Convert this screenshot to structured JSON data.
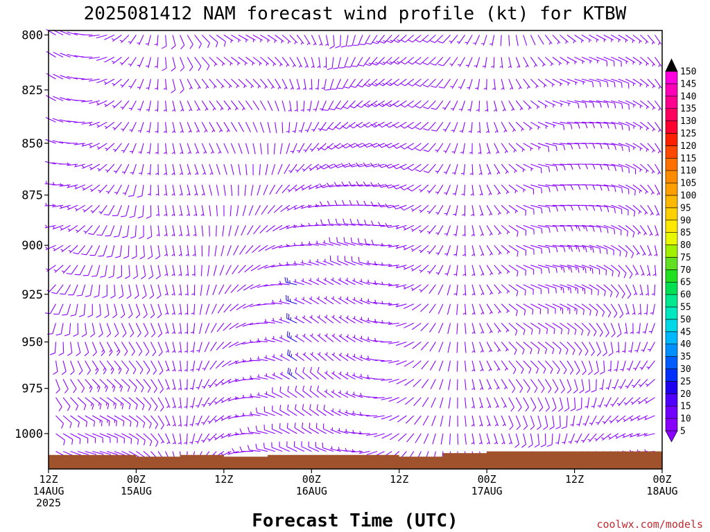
{
  "chart_data": {
    "type": "wind-barb time-height profile",
    "title": "2025081412 NAM forecast wind profile (kt) for KTBW",
    "xlabel": "Forecast Time (UTC)",
    "ylabel": "",
    "y_axis": {
      "unit": "hPa",
      "scale": "log-pressure, inverted (1000 at bottom)",
      "ylim": [
        1020,
        798
      ],
      "ticks": [
        800,
        825,
        850,
        875,
        900,
        925,
        950,
        975,
        1000
      ]
    },
    "x_axis": {
      "xlim": [
        "2025-08-14 12Z",
        "2025-08-18 00Z"
      ],
      "ticks": [
        {
          "time": "2025-08-14 12Z",
          "label1": "12Z",
          "label2": "14AUG",
          "label3": "2025"
        },
        {
          "time": "2025-08-15 00Z",
          "label1": "00Z",
          "label2": "15AUG",
          "label3": ""
        },
        {
          "time": "2025-08-15 12Z",
          "label1": "12Z",
          "label2": "",
          "label3": ""
        },
        {
          "time": "2025-08-16 00Z",
          "label1": "00Z",
          "label2": "16AUG",
          "label3": ""
        },
        {
          "time": "2025-08-16 12Z",
          "label1": "12Z",
          "label2": "",
          "label3": ""
        },
        {
          "time": "2025-08-17 00Z",
          "label1": "00Z",
          "label2": "17AUG",
          "label3": ""
        },
        {
          "time": "2025-08-17 12Z",
          "label1": "12Z",
          "label2": "",
          "label3": ""
        },
        {
          "time": "2025-08-18 00Z",
          "label1": "00Z",
          "label2": "18AUG",
          "label3": ""
        }
      ]
    },
    "colorbar": {
      "unit": "kt",
      "levels": [
        5,
        10,
        15,
        20,
        25,
        30,
        35,
        40,
        45,
        50,
        55,
        60,
        65,
        70,
        75,
        80,
        85,
        90,
        95,
        100,
        105,
        110,
        115,
        120,
        125,
        130,
        135,
        140,
        145,
        150
      ],
      "colors": [
        "#8a00ff",
        "#7200ff",
        "#5000ff",
        "#2000f0",
        "#0030ff",
        "#005cff",
        "#0090ff",
        "#00b8ff",
        "#00d8e8",
        "#00e8c0",
        "#00e890",
        "#00e050",
        "#20e020",
        "#60e020",
        "#a0f000",
        "#e8f800",
        "#ffe800",
        "#ffd000",
        "#ffb800",
        "#ffa000",
        "#ff8c00",
        "#ff7000",
        "#ff4800",
        "#ff2000",
        "#ff0030",
        "#ff0060",
        "#ff0090",
        "#ff00b8",
        "#ff00e0",
        "#e000ff"
      ],
      "extend": "both",
      "low_color": "#8a00ff",
      "high_color": "#000000"
    },
    "barb_grid": {
      "time_step_hours": 1,
      "levels_hpa": [
        800,
        810,
        820,
        830,
        840,
        850,
        860,
        870,
        880,
        890,
        900,
        910,
        920,
        930,
        940,
        950,
        960,
        970,
        980,
        990,
        1000,
        1010
      ],
      "barb_color_dominant": "#8a00ff",
      "barb_color_strong": "#2a10e0",
      "strong_barbs_time": "2025-08-15 22Z",
      "strong_barbs_levels_hpa": [
        920,
        930,
        940,
        950,
        960,
        970
      ]
    },
    "terrain": {
      "color": "#a0522d",
      "description": "surface pressure mask along bottom",
      "surface_hpa_by_time": [
        [
          "2025-08-14 12Z",
          1012
        ],
        [
          "2025-08-14 18Z",
          1012
        ],
        [
          "2025-08-15 00Z",
          1013
        ],
        [
          "2025-08-15 06Z",
          1012
        ],
        [
          "2025-08-15 12Z",
          1013
        ],
        [
          "2025-08-15 18Z",
          1012
        ],
        [
          "2025-08-16 00Z",
          1012
        ],
        [
          "2025-08-16 06Z",
          1012
        ],
        [
          "2025-08-16 12Z",
          1013
        ],
        [
          "2025-08-16 18Z",
          1011
        ],
        [
          "2025-08-17 00Z",
          1010
        ],
        [
          "2025-08-17 06Z",
          1010
        ],
        [
          "2025-08-17 12Z",
          1010
        ],
        [
          "2025-08-17 18Z",
          1010
        ],
        [
          "2025-08-18 00Z",
          1008
        ]
      ]
    },
    "credit": "coolwx.com/models"
  }
}
